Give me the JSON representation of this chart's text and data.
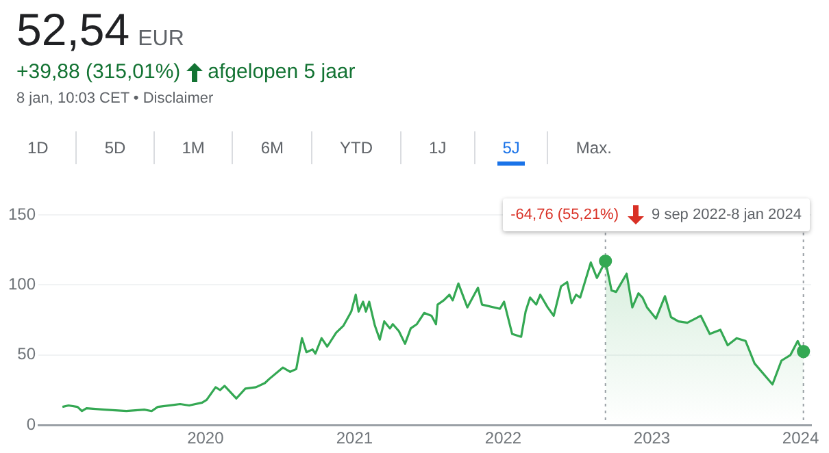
{
  "chart_data": {
    "type": "line",
    "title": "52,54",
    "subtitle": "EUR",
    "annotations": [
      "+39,88 (315,01%)",
      "afgelopen 5 jaar",
      "8 jan, 10:03 CET • Disclaimer",
      "1D",
      "5D",
      "1M",
      "6M",
      "YTD",
      "1J",
      "5J",
      "Max.",
      "-64,76 (55,21%)",
      "9 sep 2022-8 jan 2024"
    ],
    "xlim": [
      "2018-11-17",
      "2024-01-27"
    ],
    "xticks": [
      {
        "value": "2020-01-01",
        "label": "2020"
      },
      {
        "value": "2021-01-01",
        "label": "2021"
      },
      {
        "value": "2022-01-01",
        "label": "2022"
      },
      {
        "value": "2023-01-01",
        "label": "2023"
      },
      {
        "value": "2024-01-01",
        "label": "2024"
      }
    ],
    "ylim": [
      0,
      150
    ],
    "yticks": [
      0,
      50,
      100,
      150
    ],
    "grid": "y",
    "legend": false,
    "ref_lines": [
      {
        "axis": "x",
        "value": "2022-09-09",
        "color": "#9aa0a6",
        "line_style": "dotted"
      },
      {
        "axis": "x",
        "value": "2024-01-08",
        "color": "#9aa0a6",
        "line_style": "dotted"
      }
    ],
    "series": [
      {
        "color": "#34a853",
        "marker": "none",
        "x": [
          "2019-01-15",
          "2019-01-30",
          "2019-02-21",
          "2019-03-04",
          "2019-03-15",
          "2019-04-28",
          "2019-06-21",
          "2019-08-04",
          "2019-08-22",
          "2019-09-06",
          "2019-10-31",
          "2019-11-22",
          "2019-12-24",
          "2020-01-04",
          "2020-01-26",
          "2020-02-06",
          "2020-02-17",
          "2020-03-17",
          "2020-04-08",
          "2020-05-04",
          "2020-05-26",
          "2020-06-06",
          "2020-07-09",
          "2020-07-27",
          "2020-08-11",
          "2020-08-25",
          "2020-09-05",
          "2020-09-20",
          "2020-09-27",
          "2020-10-12",
          "2020-10-26",
          "2020-11-17",
          "2020-12-05",
          "2020-12-24",
          "2021-01-04",
          "2021-01-11",
          "2021-01-22",
          "2021-01-29",
          "2021-02-06",
          "2021-02-20",
          "2021-03-04",
          "2021-03-15",
          "2021-03-29",
          "2021-04-05",
          "2021-04-20",
          "2021-05-05",
          "2021-05-19",
          "2021-06-03",
          "2021-06-21",
          "2021-07-09",
          "2021-07-20",
          "2021-07-24",
          "2021-08-08",
          "2021-08-22",
          "2021-08-30",
          "2021-09-13",
          "2021-10-05",
          "2021-10-31",
          "2021-11-10",
          "2021-12-24",
          "2022-01-03",
          "2022-01-23",
          "2022-02-14",
          "2022-02-25",
          "2022-03-08",
          "2022-03-23",
          "2022-04-02",
          "2022-04-20",
          "2022-05-05",
          "2022-05-23",
          "2022-06-07",
          "2022-06-18",
          "2022-06-29",
          "2022-07-09",
          "2022-08-04",
          "2022-08-19",
          "2022-09-09"
        ],
        "values": [
          13,
          14,
          13,
          10,
          12,
          11,
          10,
          11,
          10,
          13,
          15,
          14,
          16,
          18,
          27,
          25,
          28,
          19,
          26,
          27,
          30,
          33,
          41,
          38,
          40,
          62,
          52,
          54,
          51,
          62,
          56,
          66,
          71,
          81,
          93,
          81,
          88,
          81,
          88,
          71,
          61,
          74,
          69,
          72,
          67,
          58,
          69,
          72,
          80,
          78,
          72,
          86,
          89,
          93,
          89,
          101,
          84,
          98,
          86,
          83,
          88,
          65,
          63,
          81,
          91,
          86,
          93,
          84,
          78,
          99,
          102,
          87,
          93,
          91,
          116,
          105,
          117
        ]
      },
      {
        "type": "area",
        "color": "#34a853",
        "marker": "none",
        "x": [
          "2022-09-09",
          "2022-09-24",
          "2022-10-05",
          "2022-10-31",
          "2022-11-14",
          "2022-11-29",
          "2022-12-09",
          "2022-12-20",
          "2023-01-11",
          "2023-02-02",
          "2023-02-17",
          "2023-03-07",
          "2023-03-29",
          "2023-05-01",
          "2023-05-23",
          "2023-06-18",
          "2023-07-06",
          "2023-07-28",
          "2023-08-19",
          "2023-09-10",
          "2023-10-24",
          "2023-11-15",
          "2023-12-07",
          "2023-12-25",
          "2024-01-02",
          "2024-01-08"
        ],
        "values": [
          117,
          96,
          95,
          108,
          84,
          94,
          91,
          84,
          76,
          92,
          77,
          74,
          73,
          78,
          65,
          68,
          57,
          62,
          60,
          44,
          29,
          46,
          50,
          60,
          55,
          52.54
        ]
      },
      {
        "type": "scatter",
        "color": "#34a853",
        "marker": "circle",
        "x": [
          "2022-09-09",
          "2024-01-08"
        ],
        "values": [
          117,
          52.54
        ]
      }
    ]
  }
}
